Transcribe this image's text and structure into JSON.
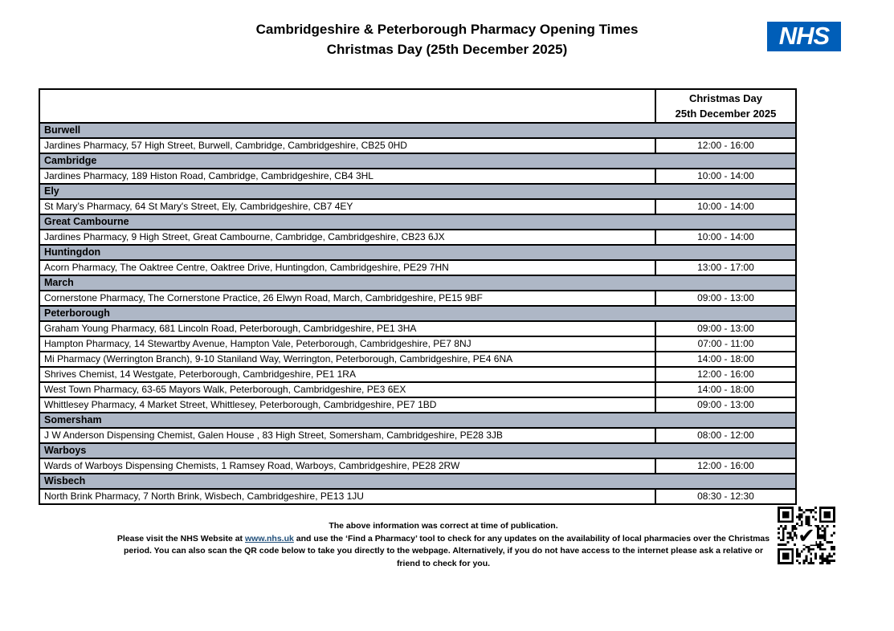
{
  "page": {
    "title_line1": "Cambridgeshire & Peterborough Pharmacy Opening Times",
    "title_line2": "Christmas Day (25th December 2025)"
  },
  "nhs_logo_text": "NHS",
  "table": {
    "header": {
      "line1": "Christmas Day",
      "line2": "25th December 2025"
    },
    "sections": [
      {
        "town": "Burwell",
        "pharmacies": [
          {
            "address": "Jardines Pharmacy, 57 High Street, Burwell, Cambridge, Cambridgeshire, CB25 0HD",
            "time": "12:00 - 16:00"
          }
        ]
      },
      {
        "town": "Cambridge",
        "pharmacies": [
          {
            "address": "Jardines Pharmacy, 189 Histon Road, Cambridge, Cambridgeshire, CB4 3HL",
            "time": "10:00 - 14:00"
          }
        ]
      },
      {
        "town": "Ely",
        "pharmacies": [
          {
            "address": "St Mary’s Pharmacy, 64 St Mary's Street, Ely, Cambridgeshire, CB7 4EY",
            "time": "10:00 - 14:00"
          }
        ]
      },
      {
        "town": "Great Cambourne",
        "pharmacies": [
          {
            "address": "Jardines Pharmacy, 9 High Street, Great Cambourne, Cambridge, Cambridgeshire, CB23 6JX",
            "time": "10:00 - 14:00"
          }
        ]
      },
      {
        "town": "Huntingdon",
        "pharmacies": [
          {
            "address": "Acorn Pharmacy, The Oaktree Centre, Oaktree Drive, Huntingdon, Cambridgeshire, PE29 7HN",
            "time": "13:00 - 17:00"
          }
        ]
      },
      {
        "town": "March",
        "pharmacies": [
          {
            "address": "Cornerstone Pharmacy, The Cornerstone Practice, 26 Elwyn Road, March, Cambridgeshire, PE15 9BF",
            "time": "09:00 - 13:00"
          }
        ]
      },
      {
        "town": "Peterborough",
        "pharmacies": [
          {
            "address": "Graham Young Pharmacy, 681 Lincoln Road, Peterborough, Cambridgeshire, PE1 3HA",
            "time": "09:00 - 13:00"
          },
          {
            "address": "Hampton Pharmacy, 14 Stewartby Avenue, Hampton Vale, Peterborough, Cambridgeshire, PE7 8NJ",
            "time": "07:00 - 11:00"
          },
          {
            "address": "Mi Pharmacy (Werrington Branch), 9-10 Staniland Way, Werrington, Peterborough, Cambridgeshire, PE4 6NA",
            "time": "14:00 - 18:00"
          },
          {
            "address": "Shrives Chemist, 14 Westgate, Peterborough, Cambridgeshire, PE1 1RA",
            "time": "12:00 - 16:00"
          },
          {
            "address": "West Town Pharmacy, 63-65 Mayors Walk, Peterborough, Cambridgeshire, PE3 6EX",
            "time": "14:00 - 18:00"
          },
          {
            "address": "Whittlesey Pharmacy, 4 Market Street, Whittlesey, Peterborough, Cambridgeshire, PE7 1BD",
            "time": "09:00 - 13:00"
          }
        ]
      },
      {
        "town": "Somersham",
        "pharmacies": [
          {
            "address": "J W Anderson Dispensing Chemist, Galen House , 83 High Street, Somersham, Cambridgeshire, PE28 3JB",
            "time": "08:00 - 12:00"
          }
        ]
      },
      {
        "town": "Warboys",
        "pharmacies": [
          {
            "address": "Wards of Warboys Dispensing Chemists, 1 Ramsey Road, Warboys, Cambridgeshire, PE28 2RW",
            "time": "12:00 - 16:00"
          }
        ]
      },
      {
        "town": "Wisbech",
        "pharmacies": [
          {
            "address": "North Brink Pharmacy, 7 North Brink, Wisbech, Cambridgeshire, PE13 1JU",
            "time": "08:30 - 12:30"
          }
        ]
      }
    ]
  },
  "footer": {
    "line1": "The above information was correct at time of publication.",
    "line2_before_link": "Please visit the NHS Website at ",
    "link_text": "www.nhs.uk",
    "line2_after_link": " and use the ‘Find a Pharmacy’ tool to check for any updates on the availability of local pharmacies over the Christmas period. You can also scan the QR code below to take you directly to the webpage. Alternatively, if you do not have access to the internet please ask a relative or friend to check for you."
  },
  "icons": {
    "qr_checkmark": "✔"
  },
  "colors": {
    "nhs_blue": "#005EB8",
    "section_band": "#AEB7C6",
    "link": "#1F4E79",
    "border": "#000000"
  }
}
